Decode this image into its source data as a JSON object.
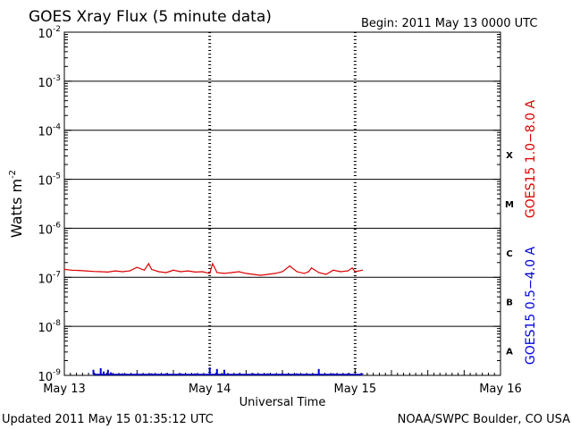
{
  "chart_data": {
    "type": "line",
    "title": "GOES Xray Flux (5 minute data)",
    "begin_label": "Begin:  2011 May 13 0000 UTC",
    "xlabel": "Universal Time",
    "ylabel": "Watts m",
    "ylabel_superscript": "-2",
    "x_ticks": [
      "May 13",
      "May 14",
      "May 15",
      "May 16"
    ],
    "xlim_days": [
      0,
      3
    ],
    "ylim": [
      1e-09,
      0.01
    ],
    "y_scale": "log",
    "y_tick_bases": [
      "10",
      "10",
      "10",
      "10",
      "10",
      "10",
      "10",
      "10"
    ],
    "y_tick_exponents": [
      "-2",
      "-3",
      "-4",
      "-5",
      "-6",
      "-7",
      "-8",
      "-9"
    ],
    "flare_classes": [
      "X",
      "M",
      "C",
      "B",
      "A"
    ],
    "series": [
      {
        "name": "GOES15 1.0−8.0 A",
        "color": "#dd0000",
        "x_days": [
          0,
          0.05,
          0.1,
          0.15,
          0.2,
          0.25,
          0.3,
          0.35,
          0.4,
          0.45,
          0.5,
          0.55,
          0.58,
          0.6,
          0.65,
          0.7,
          0.72,
          0.75,
          0.8,
          0.85,
          0.9,
          0.95,
          1.0,
          1.02,
          1.05,
          1.1,
          1.15,
          1.2,
          1.25,
          1.3,
          1.35,
          1.4,
          1.45,
          1.5,
          1.55,
          1.6,
          1.65,
          1.68,
          1.7,
          1.75,
          1.8,
          1.85,
          1.9,
          1.95,
          1.98,
          2.0,
          2.05
        ],
        "values": [
          1.45e-07,
          1.4e-07,
          1.38e-07,
          1.35e-07,
          1.32e-07,
          1.3e-07,
          1.28e-07,
          1.35e-07,
          1.3e-07,
          1.35e-07,
          1.6e-07,
          1.4e-07,
          1.9e-07,
          1.45e-07,
          1.3e-07,
          1.25e-07,
          1.3e-07,
          1.4e-07,
          1.3e-07,
          1.35e-07,
          1.28e-07,
          1.3e-07,
          1.2e-07,
          1.9e-07,
          1.25e-07,
          1.2e-07,
          1.25e-07,
          1.3e-07,
          1.2e-07,
          1.15e-07,
          1.1e-07,
          1.15e-07,
          1.2e-07,
          1.3e-07,
          1.7e-07,
          1.3e-07,
          1.2e-07,
          1.3e-07,
          1.55e-07,
          1.25e-07,
          1.15e-07,
          1.4e-07,
          1.3e-07,
          1.35e-07,
          1.55e-07,
          1.3e-07,
          1.4e-07
        ]
      },
      {
        "name": "GOES15 0.5−4.0 A",
        "color": "#0000dd",
        "x_days": [
          0.2,
          0.25,
          0.27,
          0.3,
          0.32,
          0.4,
          0.5,
          0.6,
          0.7,
          0.8,
          0.9,
          1.0,
          1.05,
          1.1,
          1.2,
          1.3,
          1.4,
          1.5,
          1.6,
          1.75,
          1.85,
          1.95,
          2.05
        ],
        "values": [
          1.3e-09,
          1.4e-09,
          1.2e-09,
          1.3e-09,
          1.15e-09,
          1.1e-09,
          1.1e-09,
          1.1e-09,
          1.1e-09,
          1.1e-09,
          1.1e-09,
          1.45e-09,
          1.35e-09,
          1.3e-09,
          1.1e-09,
          1.1e-09,
          1.1e-09,
          1.1e-09,
          1.1e-09,
          1.35e-09,
          1.1e-09,
          1.1e-09,
          1.1e-09
        ]
      }
    ]
  },
  "footer": {
    "updated": "Updated 2011 May 15 01:35:12 UTC",
    "credit": "NOAA/SWPC Boulder, CO USA"
  }
}
